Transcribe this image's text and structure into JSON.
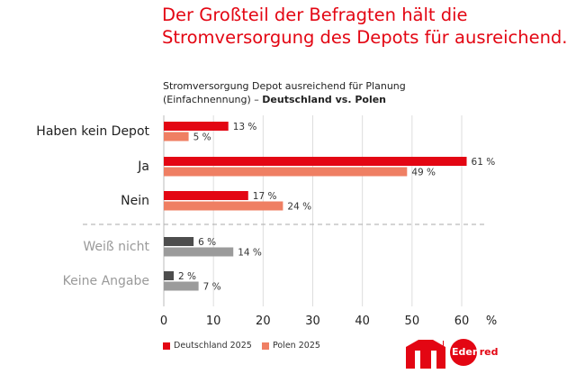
{
  "title": "Der Großteil der Befragten hält die Stromversorgung des Depots für ausreichend.",
  "subtitle_line1": "Stromversorgung Depot ausreichend für Planung",
  "subtitle_line2_prefix": "(Einfachnennung) – ",
  "subtitle_line2_bold": "Deutschland vs. Polen",
  "logos": [
    "UTA",
    "Edenred"
  ],
  "chart_data": {
    "type": "bar",
    "orientation": "horizontal",
    "categories": [
      "Haben kein Depot",
      "Ja",
      "Nein",
      "Weiß nicht",
      "Keine Angabe"
    ],
    "series": [
      {
        "name": "Deutschland 2025",
        "values": [
          13,
          61,
          17,
          6,
          2
        ],
        "color": "#e30613",
        "muted_color": "#4d4d4d"
      },
      {
        "name": "Polen 2025",
        "values": [
          5,
          49,
          24,
          14,
          7
        ],
        "color": "#ef7f63",
        "muted_color": "#9b9b9b"
      }
    ],
    "muted_categories": [
      "Weiß nicht",
      "Keine Angabe"
    ],
    "value_suffix": " %",
    "xlim": [
      0,
      60
    ],
    "xticks": [
      "0",
      "10",
      "20",
      "30",
      "40",
      "50",
      "60"
    ],
    "xunit": "%",
    "grid": true,
    "legend": "bottom-left"
  }
}
